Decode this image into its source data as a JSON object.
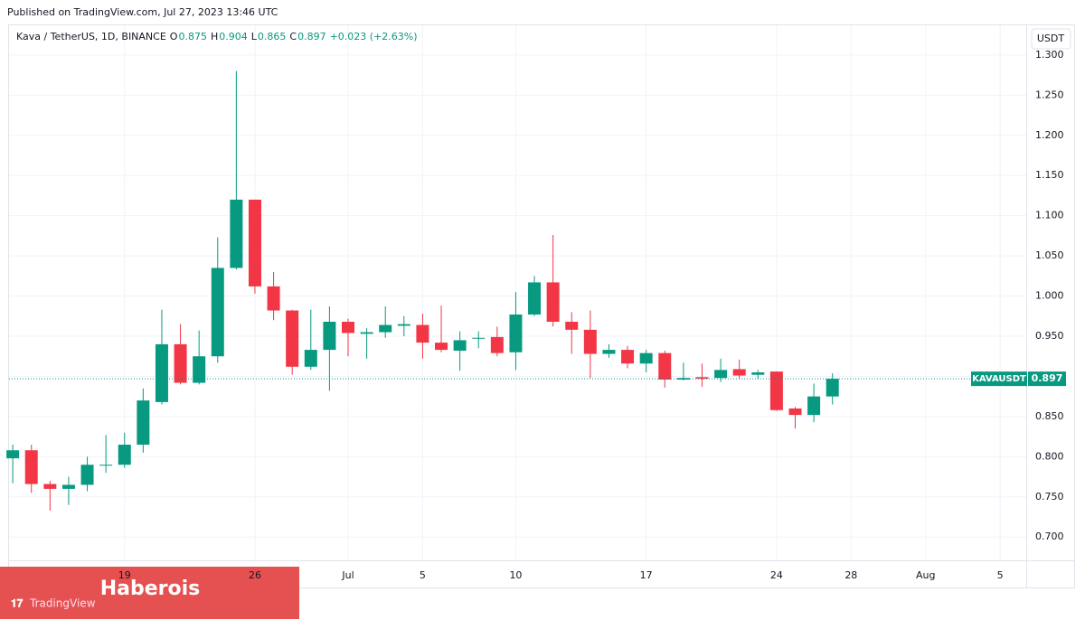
{
  "published": "Published on TradingView.com, Jul 27, 2023 13:46 UTC",
  "chart_data": {
    "type": "candlestick",
    "title": "Kava / TetherUS, 1D, BINANCE",
    "ohlc_header": [
      {
        "label": "O",
        "value": "0.875"
      },
      {
        "label": "H",
        "value": "0.904"
      },
      {
        "label": "L",
        "value": "0.865"
      },
      {
        "label": "C",
        "value": "0.897"
      }
    ],
    "change": "+0.023 (+2.63%)",
    "currency": "USDT",
    "up_color": "#089981",
    "down_color": "#f23645",
    "open": [
      0.798,
      0.808,
      0.766,
      0.76,
      0.765,
      0.789,
      0.79,
      0.815,
      0.868,
      0.94,
      0.892,
      0.925,
      1.035,
      1.12,
      1.012,
      0.982,
      0.912,
      0.933,
      0.968,
      0.953,
      0.955,
      0.963,
      0.964,
      0.942,
      0.932,
      0.947,
      0.949,
      0.93,
      0.977,
      1.017,
      0.968,
      0.958,
      0.928,
      0.933,
      0.916,
      0.929,
      0.896,
      0.899,
      0.898,
      0.909,
      0.902,
      0.906,
      0.86,
      0.852,
      0.875
    ],
    "high": [
      0.815,
      0.815,
      0.77,
      0.775,
      0.8,
      0.827,
      0.83,
      0.885,
      0.983,
      0.965,
      0.957,
      1.073,
      1.28,
      1.12,
      1.03,
      0.983,
      0.983,
      0.987,
      0.972,
      0.96,
      0.987,
      0.975,
      0.978,
      0.988,
      0.956,
      0.956,
      0.962,
      1.005,
      1.025,
      1.076,
      0.98,
      0.982,
      0.94,
      0.938,
      0.933,
      0.932,
      0.917,
      0.916,
      0.922,
      0.921,
      0.908,
      0.906,
      0.862,
      0.891,
      0.904
    ],
    "low": [
      0.767,
      0.755,
      0.733,
      0.74,
      0.757,
      0.78,
      0.786,
      0.805,
      0.865,
      0.89,
      0.89,
      0.917,
      1.033,
      1.003,
      0.97,
      0.902,
      0.908,
      0.882,
      0.925,
      0.922,
      0.948,
      0.95,
      0.922,
      0.93,
      0.907,
      0.935,
      0.925,
      0.908,
      0.975,
      0.962,
      0.928,
      0.898,
      0.923,
      0.91,
      0.905,
      0.886,
      0.895,
      0.887,
      0.893,
      0.897,
      0.897,
      0.857,
      0.835,
      0.843,
      0.865
    ],
    "close": [
      0.808,
      0.766,
      0.76,
      0.765,
      0.79,
      0.79,
      0.815,
      0.87,
      0.94,
      0.892,
      0.925,
      1.035,
      1.12,
      1.012,
      0.982,
      0.912,
      0.933,
      0.968,
      0.954,
      0.955,
      0.964,
      0.965,
      0.942,
      0.933,
      0.945,
      0.948,
      0.929,
      0.977,
      1.017,
      0.968,
      0.958,
      0.928,
      0.933,
      0.916,
      0.929,
      0.896,
      0.898,
      0.897,
      0.908,
      0.901,
      0.905,
      0.858,
      0.852,
      0.875,
      0.897
    ],
    "xlim": [
      -0.2,
      54.4
    ],
    "xticks": [
      {
        "value": 6,
        "label": "19"
      },
      {
        "value": 13,
        "label": "26"
      },
      {
        "value": 18,
        "label": "Jul"
      },
      {
        "value": 22,
        "label": "5"
      },
      {
        "value": 27,
        "label": "10"
      },
      {
        "value": 34,
        "label": "17"
      },
      {
        "value": 41,
        "label": "24"
      },
      {
        "value": 45,
        "label": "28"
      },
      {
        "value": 49,
        "label": "Aug"
      },
      {
        "value": 53,
        "label": "5"
      }
    ],
    "ylim": [
      0.671,
      1.337
    ],
    "yticks": [
      {
        "value": 0.7,
        "label": "0.700"
      },
      {
        "value": 0.75,
        "label": "0.750"
      },
      {
        "value": 0.8,
        "label": "0.800"
      },
      {
        "value": 0.85,
        "label": "0.850"
      },
      {
        "value": 0.9,
        "label": "0.900"
      },
      {
        "value": 0.95,
        "label": "0.950"
      },
      {
        "value": 1.0,
        "label": "1.000"
      },
      {
        "value": 1.05,
        "label": "1.050"
      },
      {
        "value": 1.1,
        "label": "1.100"
      },
      {
        "value": 1.15,
        "label": "1.150"
      },
      {
        "value": 1.2,
        "label": "1.200"
      },
      {
        "value": 1.25,
        "label": "1.250"
      },
      {
        "value": 1.3,
        "label": "1.300"
      }
    ],
    "grid": true,
    "last_price": {
      "label": "KAVAUSDT",
      "value": 0.897
    }
  },
  "watermark": "Haberois",
  "brand": "TradingView"
}
